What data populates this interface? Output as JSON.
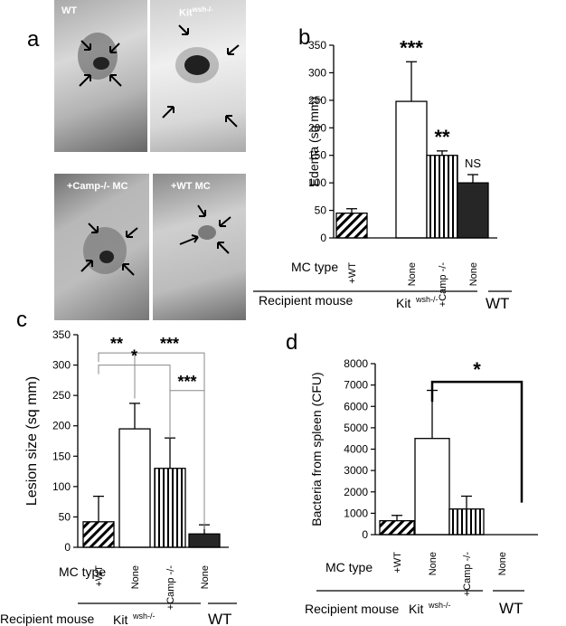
{
  "panels": {
    "a": {
      "letter": "a",
      "photos": [
        {
          "label": "WT",
          "label_sup": ""
        },
        {
          "label": "Kit",
          "label_sup": "wsh-/-"
        },
        {
          "label": "+Camp-/- MC",
          "label_sup": ""
        },
        {
          "label": "+WT MC",
          "label_sup": ""
        }
      ]
    },
    "b": {
      "letter": "b"
    },
    "c": {
      "letter": "c"
    },
    "d": {
      "letter": "d"
    }
  },
  "footer_labels": {
    "mc_type": "MC type",
    "recipient_mouse": "Recipient mouse",
    "kit": "Kit",
    "kit_sup": "wsh-/-",
    "wt": "WT"
  },
  "colors": {
    "bar_fill_dark": "#262626",
    "bar_stroke": "#000000"
  },
  "chart_data": [
    {
      "panel": "b",
      "type": "bar",
      "categories": [
        "+WT",
        "None",
        "+Camp -/-",
        "None"
      ],
      "values": [
        45,
        248,
        150,
        100
      ],
      "errors": [
        8,
        72,
        8,
        15
      ],
      "patterns": [
        "diagonal",
        "open",
        "vertical",
        "solid"
      ],
      "significance": [
        "",
        "***",
        "**",
        "NS"
      ],
      "ylabel": "Edema (sq mm)",
      "ylim": [
        0,
        350
      ],
      "yticks": [
        0,
        50,
        100,
        150,
        200,
        250,
        300,
        350
      ],
      "grid": false
    },
    {
      "panel": "c",
      "type": "bar",
      "categories": [
        "+WT",
        "None",
        "+Camp -/-",
        "None"
      ],
      "values": [
        42,
        195,
        130,
        22
      ],
      "errors": [
        42,
        42,
        50,
        15
      ],
      "patterns": [
        "diagonal",
        "open",
        "vertical",
        "solid"
      ],
      "comparisons": [
        {
          "from": 0,
          "to": 1,
          "label": "**"
        },
        {
          "from": 1,
          "to": 3,
          "label": "***"
        },
        {
          "from": 0,
          "to": 2,
          "label": "*"
        },
        {
          "from": 2,
          "to": 3,
          "label": "***"
        }
      ],
      "ylabel": "Lesion size (sq mm)",
      "ylim": [
        0,
        350
      ],
      "yticks": [
        0,
        50,
        100,
        150,
        200,
        250,
        300,
        350
      ],
      "grid": false
    },
    {
      "panel": "d",
      "type": "bar",
      "categories": [
        "+WT",
        "None",
        "+Camp -/-",
        "None"
      ],
      "values": [
        650,
        4500,
        1200,
        0
      ],
      "errors": [
        250,
        2250,
        600,
        0
      ],
      "patterns": [
        "diagonal",
        "open",
        "vertical",
        "solid"
      ],
      "comparisons": [
        {
          "from": 1,
          "to": 3,
          "label": "*"
        }
      ],
      "ylabel": "Bacteria from spleen (CFU)",
      "ylim": [
        0,
        8000
      ],
      "yticks": [
        0,
        1000,
        2000,
        3000,
        4000,
        5000,
        6000,
        7000,
        8000
      ],
      "grid": false
    }
  ]
}
